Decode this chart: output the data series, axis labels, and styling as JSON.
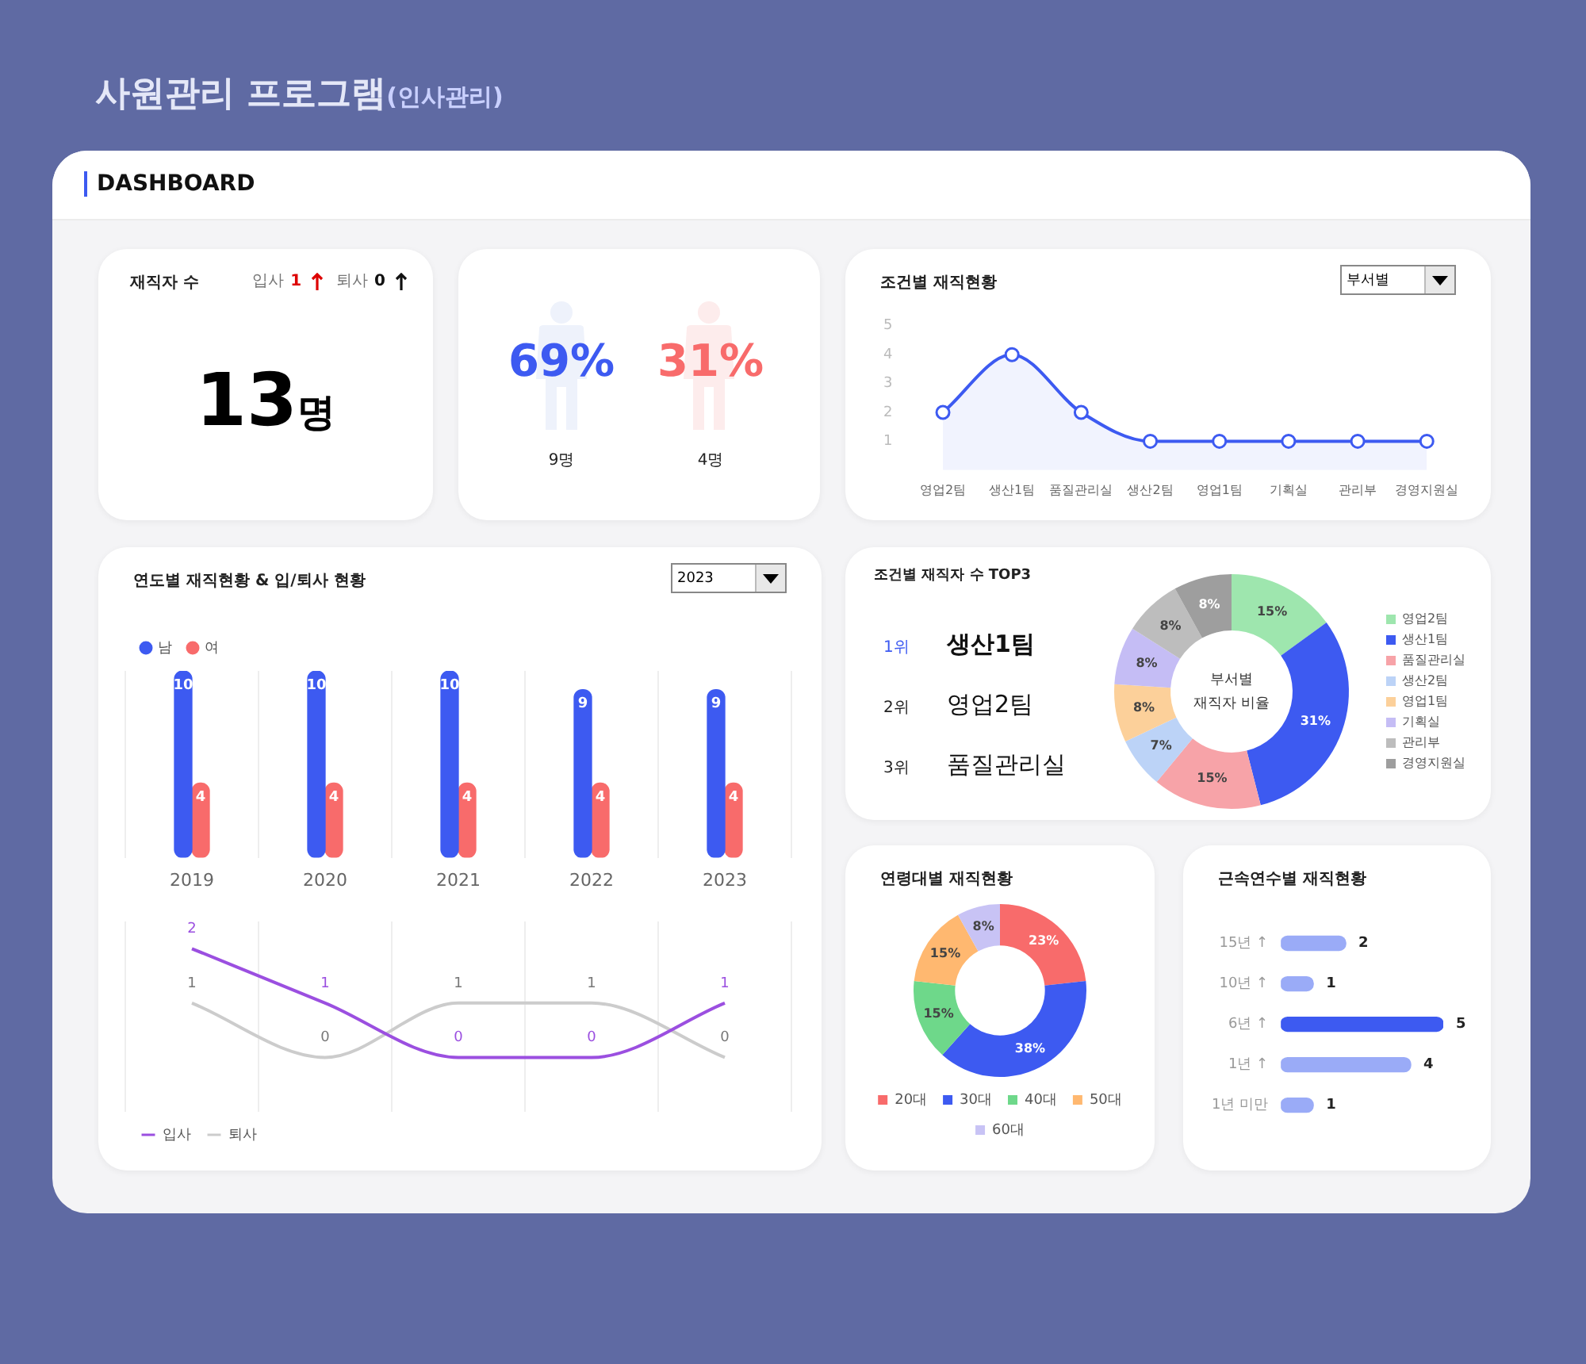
{
  "chart_data": [
    {
      "type": "other",
      "title": "사원관리 프로그램",
      "subtitle": "(인사관리)",
      "annotations": [
        "DASHBOARD"
      ]
    },
    {
      "type": "other",
      "title": "재직자 수",
      "annotations": [
        "입사",
        "1",
        "퇴사",
        "0",
        "13",
        "명"
      ]
    },
    {
      "type": "other",
      "annotations": [
        "69%",
        "31%",
        "9명",
        "4명"
      ]
    },
    {
      "type": "area",
      "title": "조건별 재직현황",
      "annotations": [
        "부서별"
      ],
      "categories": [
        "영업2팀",
        "생산1팀",
        "품질관리실",
        "생산2팀",
        "영업1팀",
        "기획실",
        "관리부",
        "경영지원실"
      ],
      "color": "#3d5af1",
      "values": [
        2,
        4,
        2,
        1,
        1,
        1,
        1,
        1
      ],
      "ylim": [
        0,
        5
      ],
      "yticks": [
        1,
        2,
        3,
        4,
        5
      ],
      "marker": "circle"
    },
    {
      "type": "bar",
      "title": "연도별 재직현황 & 입/퇴사 현황",
      "annotations": [
        "2023"
      ],
      "categories": [
        "2019",
        "2020",
        "2021",
        "2022",
        "2023"
      ],
      "series": [
        {
          "name": "남",
          "color": "#3d5af1",
          "values": [
            10,
            10,
            10,
            9,
            9
          ]
        },
        {
          "name": "여",
          "color": "#f86b6b",
          "values": [
            4,
            4,
            4,
            4,
            4
          ]
        }
      ],
      "ylim": [
        0,
        10
      ],
      "tick_labels": "x",
      "grid": "x",
      "legend": "top left",
      "data_labels": true
    },
    {
      "type": "line",
      "categories": [
        "2019",
        "2020",
        "2021",
        "2022",
        "2023"
      ],
      "series": [
        {
          "name": "입사",
          "color": "#9b4fe0",
          "values": [
            2,
            1,
            0,
            0,
            1
          ]
        },
        {
          "name": "퇴사",
          "color": "#cccccc",
          "values": [
            1,
            0,
            1,
            1,
            0
          ]
        }
      ],
      "ylim": [
        -1,
        2.5
      ],
      "tick_labels": false,
      "grid": "x",
      "legend": "bottom left",
      "data_labels": true
    },
    {
      "type": "other",
      "title": "조건별 재직자 수 TOP3",
      "annotations": [
        "1위",
        "생산1팀",
        "2위",
        "영업2팀",
        "3위",
        "품질관리실"
      ]
    },
    {
      "type": "donut",
      "annotations": [
        "부서별",
        "재직자 비율"
      ],
      "categories": [
        "영업2팀",
        "생산1팀",
        "품질관리실",
        "생산2팀",
        "영업1팀",
        "기획실",
        "관리부",
        "경영지원실"
      ],
      "values": [
        15,
        31,
        15,
        7,
        8,
        8,
        8,
        8
      ],
      "colors": [
        "#9ee6ae",
        "#3d5af1",
        "#f7a3a8",
        "#bcd3f7",
        "#fcd09a",
        "#c5bdf5",
        "#bdbdbd",
        "#9e9e9e"
      ],
      "value_labels": [
        "15%",
        "31%",
        "15%",
        "7%",
        "8%",
        "8%",
        "8%",
        "8%"
      ],
      "legend": "right"
    },
    {
      "type": "donut",
      "title": "연령대별 재직현황",
      "categories": [
        "20대",
        "30대",
        "40대",
        "50대",
        "60대"
      ],
      "values": [
        23,
        38,
        15,
        15,
        8
      ],
      "colors": [
        "#f86b6b",
        "#3d5af1",
        "#6ed88a",
        "#ffb870",
        "#c8c3f5"
      ],
      "value_labels": [
        "23%",
        "38%",
        "15%",
        "15%",
        "8%"
      ],
      "legend": "bottom"
    },
    {
      "type": "bar",
      "title": "근속연수별 재직현황",
      "orientation": "horizontal",
      "categories": [
        "15년 ↑",
        "10년 ↑",
        "6년 ↑",
        "1년 ↑",
        "1년 미만"
      ],
      "values": [
        2,
        1,
        5,
        4,
        1
      ],
      "colors": [
        "#9aabf7",
        "#9aabf7",
        "#3d5af1",
        "#9aabf7",
        "#9aabf7"
      ],
      "xlim": [
        0,
        5
      ],
      "tick_labels": "y",
      "data_labels": true
    }
  ]
}
